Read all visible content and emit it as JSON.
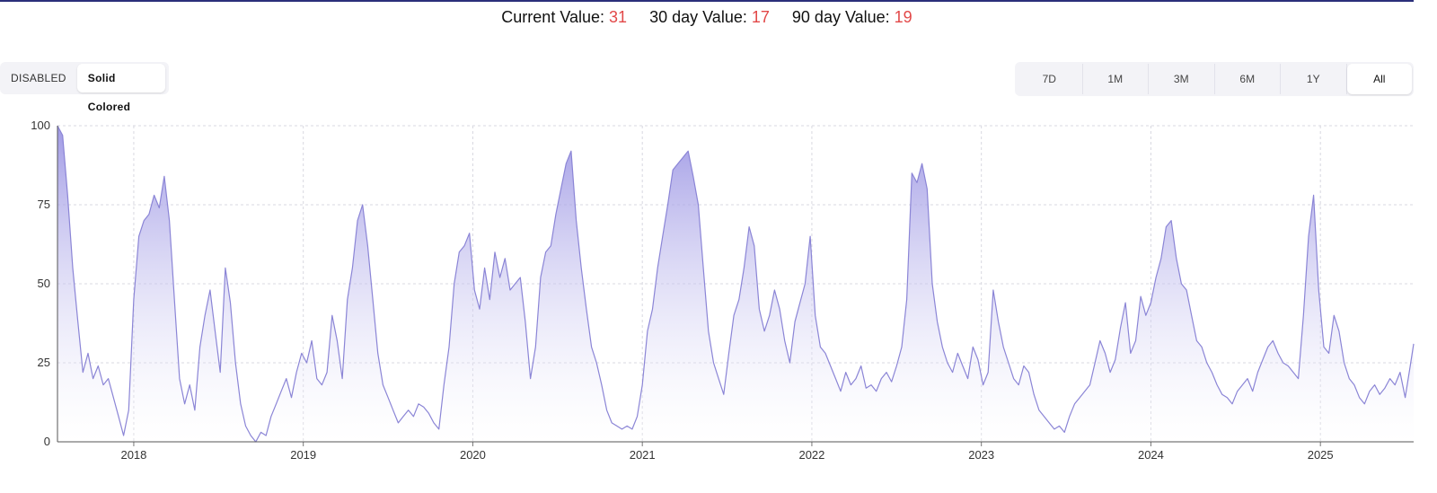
{
  "stats": {
    "current_label": "Current Value:",
    "current_value": "31",
    "d30_label": "30 day Value:",
    "d30_value": "17",
    "d90_label": "90 day Value:",
    "d90_value": "19"
  },
  "toggle": {
    "disabled_label": "DISABLED",
    "solid_label": "Solid Colored",
    "active": "Solid Colored"
  },
  "ranges": {
    "r7d": "7D",
    "r1m": "1M",
    "r3m": "3M",
    "r6m": "6M",
    "r1y": "1Y",
    "all": "All",
    "active": "All"
  },
  "colors": {
    "line": "#8b85d6",
    "fill_top": "#8f88e0",
    "fill_bottom": "#ffffff",
    "value_red": "#e24848",
    "top_rule": "#2b2f7a"
  },
  "chart_data": {
    "type": "area",
    "title": "",
    "xlabel": "",
    "ylabel": "",
    "x_ticks": [
      "2018",
      "2019",
      "2020",
      "2021",
      "2022",
      "2023",
      "2024",
      "2025"
    ],
    "y_ticks": [
      0,
      25,
      50,
      75,
      100
    ],
    "ylim": [
      0,
      100
    ],
    "xlim": [
      2017.55,
      2025.55
    ],
    "grid": true,
    "series": [
      {
        "x": [
          2017.55,
          2017.58,
          2017.61,
          2017.64,
          2017.67,
          2017.7,
          2017.73,
          2017.76,
          2017.79,
          2017.82,
          2017.85,
          2017.88,
          2017.91,
          2017.94,
          2017.97,
          2018.0,
          2018.03,
          2018.06,
          2018.09,
          2018.12,
          2018.15,
          2018.18,
          2018.21,
          2018.24,
          2018.27,
          2018.3,
          2018.33,
          2018.36,
          2018.39,
          2018.42,
          2018.45,
          2018.48,
          2018.51,
          2018.54,
          2018.57,
          2018.6,
          2018.63,
          2018.66,
          2018.69,
          2018.72,
          2018.75,
          2018.78,
          2018.81,
          2018.84,
          2018.87,
          2018.9,
          2018.93,
          2018.96,
          2018.99,
          2019.02,
          2019.05,
          2019.08,
          2019.11,
          2019.14,
          2019.17,
          2019.2,
          2019.23,
          2019.26,
          2019.29,
          2019.32,
          2019.35,
          2019.38,
          2019.41,
          2019.44,
          2019.47,
          2019.5,
          2019.53,
          2019.56,
          2019.59,
          2019.62,
          2019.65,
          2019.68,
          2019.71,
          2019.74,
          2019.77,
          2019.8,
          2019.83,
          2019.86,
          2019.89,
          2019.92,
          2019.95,
          2019.98,
          2020.01,
          2020.04,
          2020.07,
          2020.1,
          2020.13,
          2020.16,
          2020.19,
          2020.22,
          2020.25,
          2020.28,
          2020.31,
          2020.34,
          2020.37,
          2020.4,
          2020.43,
          2020.46,
          2020.49,
          2020.52,
          2020.55,
          2020.58,
          2020.61,
          2020.64,
          2020.67,
          2020.7,
          2020.73,
          2020.76,
          2020.79,
          2020.82,
          2020.85,
          2020.88,
          2020.91,
          2020.94,
          2020.97,
          2021.0,
          2021.03,
          2021.06,
          2021.09,
          2021.12,
          2021.15,
          2021.18,
          2021.21,
          2021.24,
          2021.27,
          2021.3,
          2021.33,
          2021.36,
          2021.39,
          2021.42,
          2021.45,
          2021.48,
          2021.51,
          2021.54,
          2021.57,
          2021.6,
          2021.63,
          2021.66,
          2021.69,
          2021.72,
          2021.75,
          2021.78,
          2021.81,
          2021.84,
          2021.87,
          2021.9,
          2021.93,
          2021.96,
          2021.99,
          2022.02,
          2022.05,
          2022.08,
          2022.11,
          2022.14,
          2022.17,
          2022.2,
          2022.23,
          2022.26,
          2022.29,
          2022.32,
          2022.35,
          2022.38,
          2022.41,
          2022.44,
          2022.47,
          2022.5,
          2022.53,
          2022.56,
          2022.59,
          2022.62,
          2022.65,
          2022.68,
          2022.71,
          2022.74,
          2022.77,
          2022.8,
          2022.83,
          2022.86,
          2022.89,
          2022.92,
          2022.95,
          2022.98,
          2023.01,
          2023.04,
          2023.07,
          2023.1,
          2023.13,
          2023.16,
          2023.19,
          2023.22,
          2023.25,
          2023.28,
          2023.31,
          2023.34,
          2023.37,
          2023.4,
          2023.43,
          2023.46,
          2023.49,
          2023.52,
          2023.55,
          2023.58,
          2023.61,
          2023.64,
          2023.67,
          2023.7,
          2023.73,
          2023.76,
          2023.79,
          2023.82,
          2023.85,
          2023.88,
          2023.91,
          2023.94,
          2023.97,
          2024.0,
          2024.03,
          2024.06,
          2024.09,
          2024.12,
          2024.15,
          2024.18,
          2024.21,
          2024.24,
          2024.27,
          2024.3,
          2024.33,
          2024.36,
          2024.39,
          2024.42,
          2024.45,
          2024.48,
          2024.51,
          2024.54,
          2024.57,
          2024.6,
          2024.63,
          2024.66,
          2024.69,
          2024.72,
          2024.75,
          2024.78,
          2024.81,
          2024.84,
          2024.87,
          2024.9,
          2024.93,
          2024.96,
          2024.99,
          2025.02,
          2025.05,
          2025.08,
          2025.11,
          2025.14,
          2025.17,
          2025.2,
          2025.23,
          2025.26,
          2025.29,
          2025.32,
          2025.35,
          2025.38,
          2025.41,
          2025.44,
          2025.47,
          2025.5,
          2025.53,
          2025.55
        ],
        "y": [
          100,
          97,
          78,
          55,
          38,
          22,
          28,
          20,
          24,
          18,
          20,
          14,
          8,
          2,
          10,
          45,
          65,
          70,
          72,
          78,
          74,
          84,
          70,
          45,
          20,
          12,
          18,
          10,
          30,
          40,
          48,
          35,
          22,
          55,
          44,
          25,
          12,
          5,
          2,
          0,
          3,
          2,
          8,
          12,
          16,
          20,
          14,
          22,
          28,
          25,
          32,
          20,
          18,
          22,
          40,
          32,
          20,
          45,
          55,
          70,
          75,
          62,
          45,
          28,
          18,
          14,
          10,
          6,
          8,
          10,
          8,
          12,
          11,
          9,
          6,
          4,
          18,
          30,
          50,
          60,
          62,
          66,
          48,
          42,
          55,
          45,
          60,
          52,
          58,
          48,
          50,
          52,
          38,
          20,
          30,
          52,
          60,
          62,
          72,
          80,
          88,
          92,
          70,
          55,
          42,
          30,
          25,
          18,
          10,
          6,
          5,
          4,
          5,
          4,
          8,
          18,
          35,
          42,
          55,
          65,
          75,
          86,
          88,
          90,
          92,
          84,
          75,
          55,
          35,
          25,
          20,
          15,
          28,
          40,
          45,
          55,
          68,
          62,
          42,
          35,
          40,
          48,
          42,
          32,
          25,
          38,
          44,
          50,
          65,
          40,
          30,
          28,
          24,
          20,
          16,
          22,
          18,
          20,
          24,
          17,
          18,
          16,
          20,
          22,
          19,
          24,
          30,
          45,
          85,
          82,
          88,
          80,
          50,
          38,
          30,
          25,
          22,
          28,
          24,
          20,
          30,
          26,
          18,
          22,
          48,
          38,
          30,
          25,
          20,
          18,
          24,
          22,
          15,
          10,
          8,
          6,
          4,
          5,
          3,
          8,
          12,
          14,
          16,
          18,
          25,
          32,
          28,
          22,
          26,
          36,
          44,
          28,
          32,
          46,
          40,
          44,
          52,
          58,
          68,
          70,
          58,
          50,
          48,
          40,
          32,
          30,
          25,
          22,
          18,
          15,
          14,
          12,
          16,
          18,
          20,
          16,
          22,
          26,
          30,
          32,
          28,
          25,
          24,
          22,
          20,
          40,
          65,
          78,
          48,
          30,
          28,
          40,
          35,
          25,
          20,
          18,
          14,
          12,
          16,
          18,
          15,
          17,
          20,
          18,
          22,
          14,
          24,
          31
        ]
      }
    ]
  }
}
